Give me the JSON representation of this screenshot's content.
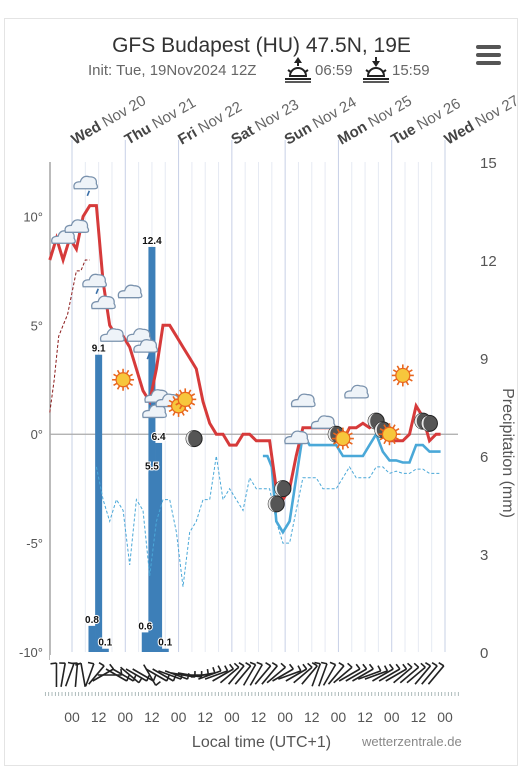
{
  "header": {
    "title": "GFS Budapest (HU) 47.5N, 19E",
    "init": "Init: Tue, 19Nov2024 12Z",
    "sunrise": "06:59",
    "sunset": "15:59",
    "menu_icon": "hamburger-menu-icon"
  },
  "footer": {
    "xlabel": "Local time (UTC+1)",
    "credit": "wetterzentrale.de"
  },
  "chart_data": {
    "type": "line",
    "days": [
      {
        "dow": "Wed",
        "date": "Nov 20"
      },
      {
        "dow": "Thu",
        "date": "Nov 21"
      },
      {
        "dow": "Fri",
        "date": "Nov 22"
      },
      {
        "dow": "Sat",
        "date": "Nov 23"
      },
      {
        "dow": "Sun",
        "date": "Nov 24"
      },
      {
        "dow": "Mon",
        "date": "Nov 25"
      },
      {
        "dow": "Tue",
        "date": "Nov 26"
      },
      {
        "dow": "Wed",
        "date": "Nov 27"
      }
    ],
    "hour_ticks": [
      "00",
      "12",
      "00",
      "12",
      "00",
      "12",
      "00",
      "12",
      "00",
      "12",
      "00",
      "12",
      "00",
      "12",
      "00"
    ],
    "y_left": {
      "ticks": [
        "10°",
        "5°",
        "0°",
        "-5°",
        "-10°"
      ],
      "values": [
        10,
        5,
        0,
        -5,
        -10
      ],
      "range": [
        -10,
        12.5
      ]
    },
    "y_right": {
      "label": "Precipitation (mm)",
      "ticks": [
        "15",
        "12",
        "9",
        "6",
        "3",
        "0"
      ],
      "values": [
        15,
        12,
        9,
        6,
        3,
        0
      ],
      "range": [
        0,
        15
      ]
    },
    "colors": {
      "temp": "#d63a3a",
      "dewpoint": "#4aa8d8",
      "precip": "#3d7fb8",
      "zero": "#aaaaaa",
      "grid": "#e6eaf3"
    },
    "series": [
      {
        "name": "temp",
        "x": [
          -10,
          -7,
          -4,
          -1,
          2,
          5,
          8,
          11,
          14,
          17,
          20,
          23,
          26,
          29,
          32,
          35,
          38,
          41,
          44,
          47,
          50,
          53,
          56,
          59,
          62,
          65,
          68,
          71,
          74,
          77,
          80,
          83,
          86,
          89,
          92,
          95,
          98,
          101,
          104,
          107,
          110,
          113,
          116,
          119,
          122,
          125,
          128,
          131,
          134,
          137,
          140,
          143,
          146,
          149,
          152,
          155,
          158,
          161,
          164,
          166
        ],
        "y": [
          8,
          9,
          8,
          9,
          8.5,
          10,
          10.5,
          10.5,
          7,
          5,
          4.5,
          4.5,
          4,
          3,
          2,
          1.5,
          3,
          5,
          5,
          4.5,
          4,
          3.5,
          3,
          1.5,
          0.5,
          0,
          0,
          -0.5,
          -0.5,
          0,
          0,
          -0.3,
          -0.3,
          -0.3,
          -2.5,
          -3,
          -2.5,
          -1,
          0.3,
          0.3,
          0.3,
          0.3,
          0.3,
          0,
          -0.3,
          0.3,
          0.3,
          0.5,
          0.3,
          0.5,
          0.3,
          -0.3,
          -0.3,
          -0.3,
          0,
          1.3,
          0.8,
          -0.3,
          0,
          0
        ]
      },
      {
        "name": "dewpoint",
        "x": [
          86,
          88,
          90,
          92,
          95,
          98,
          101,
          104,
          107,
          110,
          113,
          116,
          119,
          122,
          125,
          128,
          131,
          134,
          137,
          140,
          143,
          146,
          149,
          152,
          155,
          158,
          161,
          164,
          166
        ],
        "y": [
          -1,
          -1,
          -1.5,
          -4,
          -4.5,
          -4,
          -2,
          0,
          -0.5,
          -0.5,
          -0.5,
          -0.5,
          -0.5,
          -1,
          -1,
          -1,
          -1,
          -0.5,
          0,
          -0.8,
          -1.2,
          -1.2,
          -1.3,
          -1.3,
          -0.5,
          -0.5,
          -0.8,
          -0.8,
          -0.8
        ]
      },
      {
        "name": "temp_thin",
        "x": [
          -10,
          -8,
          -6,
          -4,
          -2,
          0,
          2,
          4,
          6,
          8
        ],
        "y": [
          1,
          2.5,
          4.5,
          5,
          5.5,
          6.5,
          7.5,
          7.5,
          8,
          8
        ]
      },
      {
        "name": "dewpoint_thin",
        "x": [
          11,
          14,
          17,
          20,
          23,
          26,
          29,
          32,
          35,
          38,
          41,
          44,
          47,
          50,
          53,
          56,
          59,
          62,
          65,
          68,
          71,
          74,
          77,
          80,
          83,
          86,
          89,
          92,
          95,
          98,
          101,
          104,
          107,
          110,
          113,
          116,
          119,
          122,
          125,
          128,
          131,
          134,
          137,
          140,
          143,
          146,
          149,
          152,
          155,
          158,
          161,
          164,
          166
        ],
        "y": [
          -1.5,
          -3,
          -4,
          -3,
          -3.5,
          -6,
          -3,
          -3.5,
          -6.5,
          -4,
          -3,
          -3,
          -4.5,
          -7,
          -4.5,
          -4,
          -3,
          -3,
          -1,
          -3,
          -2.5,
          -3,
          -3.5,
          -2,
          -2.5,
          -2.5,
          -2.5,
          -4,
          -5,
          -5,
          -3.5,
          -2,
          -2,
          -2,
          -2.5,
          -2.5,
          -2.5,
          -2,
          -1.5,
          -2,
          -2,
          -2,
          -1.5,
          -1.5,
          -1.8,
          -1.7,
          -1.8,
          -1.8,
          -1.6,
          -1.6,
          -1.8,
          -1.8,
          -1.8
        ]
      }
    ],
    "precip_bars": [
      {
        "x": 9,
        "value": 0.8,
        "label": "0.8"
      },
      {
        "x": 12,
        "value": 9.1,
        "label": "9.1"
      },
      {
        "x": 15,
        "value": 0.1,
        "label": "0.1"
      },
      {
        "x": 33,
        "value": 0.6,
        "label": "0.6"
      },
      {
        "x": 36,
        "value": 5.5,
        "label": "5.5"
      },
      {
        "x": 39,
        "value": 6.4,
        "label": "6.4"
      },
      {
        "x": 42,
        "value": 0.1,
        "label": "0.1"
      },
      {
        "x": 36,
        "value": 12.4,
        "label": "12.4"
      }
    ],
    "weather_icons": [
      {
        "x": -4,
        "temp": 9,
        "kind": "cloud"
      },
      {
        "x": 2,
        "temp": 9.5,
        "kind": "cloud"
      },
      {
        "x": 6,
        "temp": 11.5,
        "kind": "cloud-rain"
      },
      {
        "x": 10,
        "temp": 7,
        "kind": "cloud-rain"
      },
      {
        "x": 14,
        "temp": 6,
        "kind": "cloud"
      },
      {
        "x": 18,
        "temp": 4.5,
        "kind": "cloud"
      },
      {
        "x": 23,
        "temp": 2.5,
        "kind": "sun"
      },
      {
        "x": 26,
        "temp": 6.5,
        "kind": "cloud"
      },
      {
        "x": 30,
        "temp": 4.5,
        "kind": "cloud"
      },
      {
        "x": 33,
        "temp": 4,
        "kind": "cloud-rain"
      },
      {
        "x": 37,
        "temp": 1,
        "kind": "cloud"
      },
      {
        "x": 38,
        "temp": 1.7,
        "kind": "cloud"
      },
      {
        "x": 43,
        "temp": 1.5,
        "kind": "cloud"
      },
      {
        "x": 48,
        "temp": 1.3,
        "kind": "sun"
      },
      {
        "x": 51,
        "temp": 1.6,
        "kind": "sun"
      },
      {
        "x": 55,
        "temp": -0.2,
        "kind": "moon"
      },
      {
        "x": 92,
        "temp": -3.2,
        "kind": "moon"
      },
      {
        "x": 95,
        "temp": -2.5,
        "kind": "moon"
      },
      {
        "x": 101,
        "temp": -0.2,
        "kind": "cloud"
      },
      {
        "x": 104,
        "temp": 1.5,
        "kind": "cloud"
      },
      {
        "x": 113,
        "temp": 0.5,
        "kind": "cloud"
      },
      {
        "x": 119,
        "temp": 0,
        "kind": "moon"
      },
      {
        "x": 122,
        "temp": -0.2,
        "kind": "sun"
      },
      {
        "x": 128,
        "temp": 1.9,
        "kind": "cloud"
      },
      {
        "x": 137,
        "temp": 0.6,
        "kind": "moon"
      },
      {
        "x": 140,
        "temp": 0.2,
        "kind": "moon"
      },
      {
        "x": 143,
        "temp": 0,
        "kind": "sun"
      },
      {
        "x": 149,
        "temp": 2.7,
        "kind": "sun"
      },
      {
        "x": 158,
        "temp": 0.6,
        "kind": "moon"
      },
      {
        "x": 161,
        "temp": 0.5,
        "kind": "moon"
      }
    ],
    "wind": [
      {
        "x": -7,
        "dir": 180
      },
      {
        "x": -4,
        "dir": 190
      },
      {
        "x": -1,
        "dir": 200
      },
      {
        "x": 2,
        "dir": 185
      },
      {
        "x": 5,
        "dir": 170
      },
      {
        "x": 8,
        "dir": 200
      },
      {
        "x": 11,
        "dir": 220
      },
      {
        "x": 14,
        "dir": 240
      },
      {
        "x": 17,
        "dir": 270
      },
      {
        "x": 20,
        "dir": 300
      },
      {
        "x": 23,
        "dir": 300
      },
      {
        "x": 26,
        "dir": 310
      },
      {
        "x": 29,
        "dir": 300
      },
      {
        "x": 32,
        "dir": 300
      },
      {
        "x": 35,
        "dir": 330
      },
      {
        "x": 38,
        "dir": 300
      },
      {
        "x": 41,
        "dir": 300
      },
      {
        "x": 44,
        "dir": 290
      },
      {
        "x": 47,
        "dir": 290
      },
      {
        "x": 50,
        "dir": 280
      },
      {
        "x": 53,
        "dir": 280
      },
      {
        "x": 56,
        "dir": 270
      },
      {
        "x": 59,
        "dir": 260
      },
      {
        "x": 62,
        "dir": 250
      },
      {
        "x": 65,
        "dir": 250
      },
      {
        "x": 68,
        "dir": 240
      },
      {
        "x": 71,
        "dir": 230
      },
      {
        "x": 74,
        "dir": 220
      },
      {
        "x": 77,
        "dir": 220
      },
      {
        "x": 80,
        "dir": 210
      },
      {
        "x": 83,
        "dir": 210
      },
      {
        "x": 86,
        "dir": 220
      },
      {
        "x": 89,
        "dir": 220
      },
      {
        "x": 92,
        "dir": 230
      },
      {
        "x": 95,
        "dir": 240
      },
      {
        "x": 98,
        "dir": 250
      },
      {
        "x": 101,
        "dir": 240
      },
      {
        "x": 104,
        "dir": 230
      },
      {
        "x": 107,
        "dir": 220
      },
      {
        "x": 110,
        "dir": 200
      },
      {
        "x": 113,
        "dir": 200
      },
      {
        "x": 116,
        "dir": 210
      },
      {
        "x": 119,
        "dir": 220
      },
      {
        "x": 122,
        "dir": 230
      },
      {
        "x": 125,
        "dir": 240
      },
      {
        "x": 128,
        "dir": 240
      },
      {
        "x": 131,
        "dir": 240
      },
      {
        "x": 134,
        "dir": 250
      },
      {
        "x": 137,
        "dir": 250
      },
      {
        "x": 140,
        "dir": 240
      },
      {
        "x": 143,
        "dir": 240
      },
      {
        "x": 146,
        "dir": 240
      },
      {
        "x": 149,
        "dir": 230
      },
      {
        "x": 152,
        "dir": 230
      },
      {
        "x": 155,
        "dir": 230
      },
      {
        "x": 158,
        "dir": 220
      },
      {
        "x": 161,
        "dir": 220
      },
      {
        "x": 164,
        "dir": 220
      }
    ]
  }
}
